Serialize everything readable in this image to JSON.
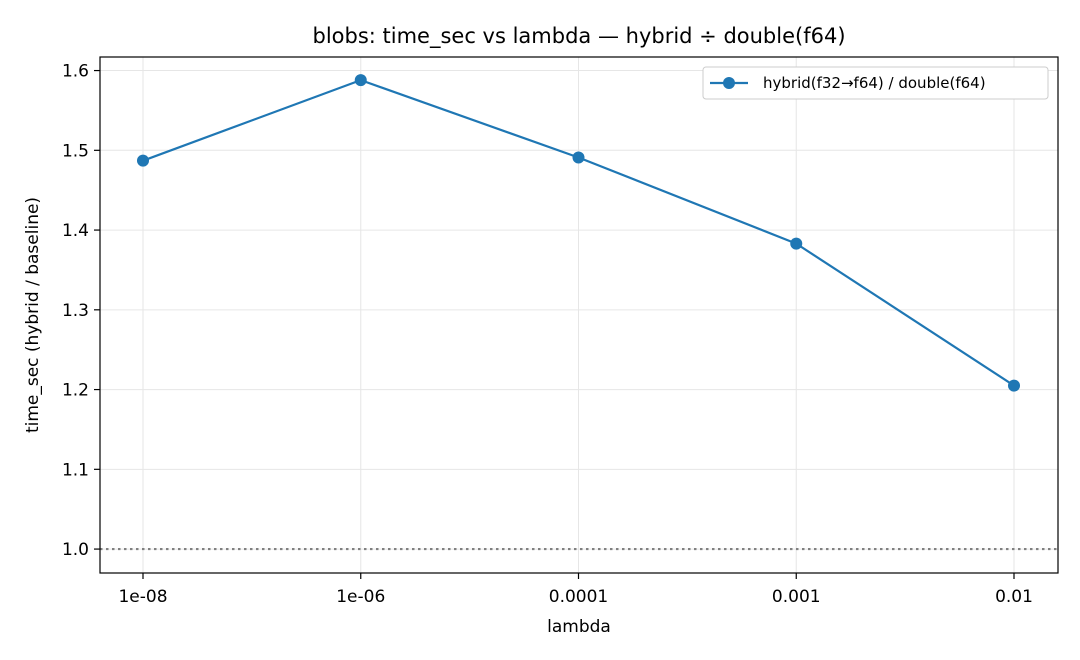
{
  "chart_data": {
    "type": "line",
    "title": "blobs: time_sec vs lambda — hybrid ÷ double(f64)",
    "xlabel": "lambda",
    "ylabel": "time_sec (hybrid / baseline)",
    "categories": [
      "1e-08",
      "1e-06",
      "0.0001",
      "0.001",
      "0.01"
    ],
    "series": [
      {
        "name": "hybrid(f32→f64) / double(f64)",
        "values": [
          1.487,
          1.588,
          1.491,
          1.383,
          1.205
        ],
        "color": "#1f77b4",
        "marker": "circle"
      }
    ],
    "reference_line": {
      "y": 1.0,
      "style": "dotted",
      "color": "#808080"
    },
    "ylim": [
      0.97,
      1.617
    ],
    "yticks": [
      1.0,
      1.1,
      1.2,
      1.3,
      1.4,
      1.5,
      1.6
    ],
    "ytick_labels": [
      "1.0",
      "1.1",
      "1.2",
      "1.3",
      "1.4",
      "1.5",
      "1.6"
    ],
    "grid": true,
    "legend_position": "top-right"
  }
}
